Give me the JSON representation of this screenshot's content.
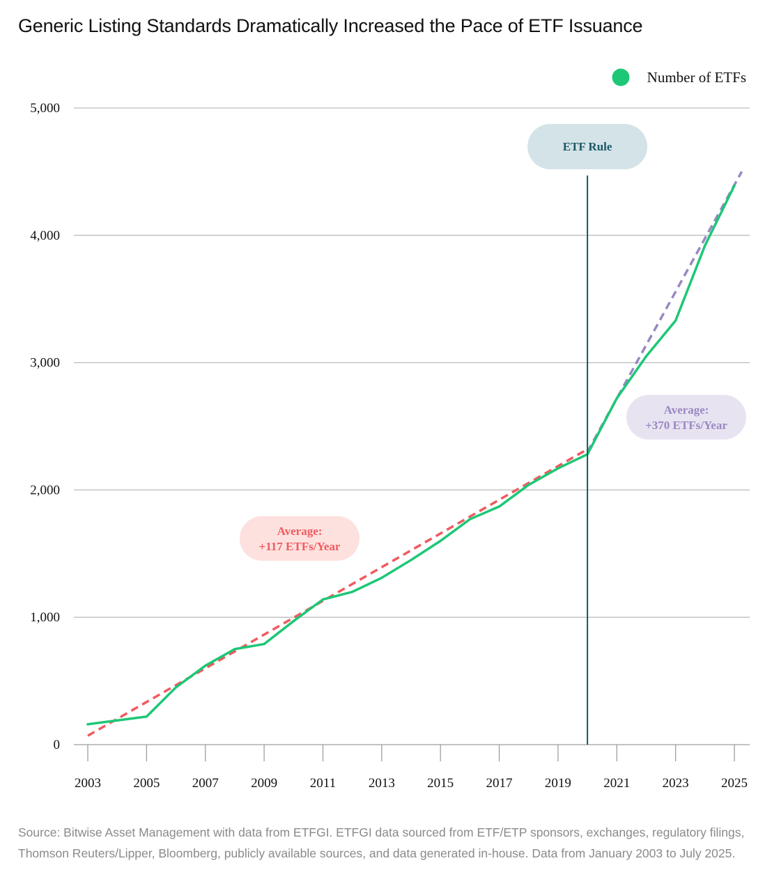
{
  "title": "Generic Listing Standards Dramatically Increased the Pace of ETF Issuance",
  "source": "Source: Bitwise Asset Management with data from ETFGI. ETFGI data sourced from ETF/ETP sponsors, exchanges, regulatory filings, Thomson Reuters/Lipper, Bloomberg, publicly available sources, and data generated in-house. Data from January 2003 to July 2025.",
  "colors": {
    "series": "#1dc776",
    "trend_before": "#f05a5f",
    "trend_after": "#9a88c2",
    "rule_line": "#0f5a63",
    "grid": "#bdbdbd",
    "rule_pill_bg": "#d3e3e8",
    "rule_pill_text": "#1b5866",
    "before_pill_bg": "#fde1df",
    "after_pill_bg": "#e8e3f1"
  },
  "chart_data": {
    "type": "line",
    "title": "Generic Listing Standards Dramatically Increased the Pace of ETF Issuance",
    "xlabel": "",
    "ylabel": "",
    "xlim": [
      2003,
      2025
    ],
    "ylim": [
      0,
      5000
    ],
    "x_ticks": [
      2003,
      2005,
      2007,
      2009,
      2011,
      2013,
      2015,
      2017,
      2019,
      2021,
      2023,
      2025
    ],
    "x_tick_labels": [
      "2003",
      "2005",
      "2007",
      "2009",
      "2011",
      "2013",
      "2015",
      "2017",
      "2019",
      "2021",
      "2023",
      "2025"
    ],
    "y_ticks": [
      0,
      1000,
      2000,
      3000,
      4000,
      5000
    ],
    "y_tick_labels": [
      "0",
      "1,000",
      "2,000",
      "3,000",
      "4,000",
      "5,000"
    ],
    "grid": true,
    "legend_position": "top-right",
    "series": [
      {
        "name": "Number of ETFs",
        "x": [
          2003,
          2004,
          2005,
          2006,
          2007,
          2008,
          2009,
          2010,
          2011,
          2012,
          2013,
          2014,
          2015,
          2016,
          2017,
          2018,
          2019,
          2020,
          2021,
          2022,
          2023,
          2024,
          2025
        ],
        "values": [
          160,
          190,
          220,
          450,
          620,
          750,
          790,
          970,
          1140,
          1200,
          1310,
          1450,
          1600,
          1770,
          1870,
          2040,
          2170,
          2280,
          2720,
          3050,
          3330,
          3920,
          4390
        ]
      }
    ],
    "trend_lines": [
      {
        "x": [
          2003,
          2020
        ],
        "values": [
          70,
          2320
        ]
      },
      {
        "x": [
          2020,
          2025.25
        ],
        "values": [
          2300,
          4500
        ]
      }
    ],
    "vertical_marker": {
      "x": 2020,
      "label": "ETF Rule"
    },
    "annotations": [
      {
        "line1": "Average:",
        "line2": "+117 ETFs/Year"
      },
      {
        "line1": "Average:",
        "line2": "+370 ETFs/Year"
      }
    ]
  }
}
